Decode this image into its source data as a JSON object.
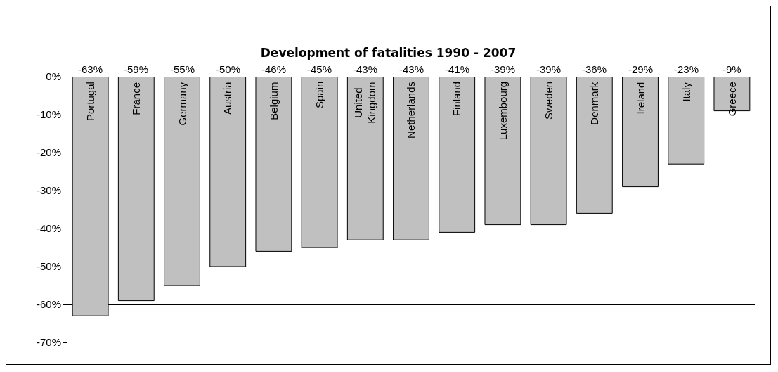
{
  "chart_data": {
    "type": "bar",
    "title": "Development of fatalities 1990 - 2007",
    "categories": [
      "Portugal",
      "France",
      "Germany",
      "Austria",
      "Belgium",
      "Spain",
      "United Kingdom",
      "Netherlands",
      "Finland",
      "Luxembourg",
      "Sweden",
      "Denmark",
      "Ireland",
      "Italy",
      "Greece"
    ],
    "values": [
      -63,
      -59,
      -55,
      -50,
      -46,
      -45,
      -43,
      -43,
      -41,
      -39,
      -39,
      -36,
      -29,
      -23,
      -9
    ],
    "value_labels": [
      "-63%",
      "-59%",
      "-55%",
      "-50%",
      "-46%",
      "-45%",
      "-43%",
      "-43%",
      "-41%",
      "-39%",
      "-39%",
      "-36%",
      "-29%",
      "-23%",
      "-9%"
    ],
    "color": "#c0c0c0",
    "ylim": [
      -70,
      0
    ],
    "yticks": [
      {
        "value": 0,
        "label": "0%"
      },
      {
        "value": -10,
        "label": "-10%"
      },
      {
        "value": -20,
        "label": "-20%"
      },
      {
        "value": -30,
        "label": "-30%"
      },
      {
        "value": -40,
        "label": "-40%"
      },
      {
        "value": -50,
        "label": "-50%"
      },
      {
        "value": -60,
        "label": "-60%"
      },
      {
        "value": -70,
        "label": "-70%"
      }
    ],
    "grid": "y",
    "legend": false
  }
}
